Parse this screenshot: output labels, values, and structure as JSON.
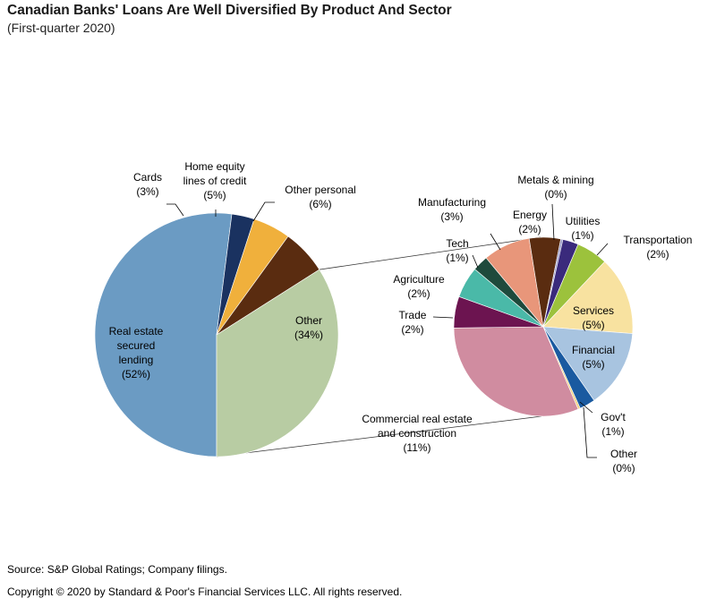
{
  "title": "Canadian Banks' Loans Are Well Diversified By Product And Sector",
  "subtitle": "(First-quarter 2020)",
  "source": "Source: S&P Global Ratings; Company filings.",
  "copyright": "Copyright © 2020 by Standard & Poor's Financial Services LLC. All rights reserved.",
  "chart_data": [
    {
      "type": "pie",
      "slices": [
        {
          "label": "Real estate secured lending",
          "value": 52,
          "value_label": "(52%)",
          "label_lines": [
            "Real estate",
            "secured",
            "lending"
          ],
          "color": "#6b9bc3"
        },
        {
          "label": "Cards",
          "value": 3,
          "value_label": "(3%)",
          "label_lines": [
            "Cards"
          ],
          "color": "#1a3260"
        },
        {
          "label": "Home equity lines of credit",
          "value": 5,
          "value_label": "(5%)",
          "label_lines": [
            "Home equity",
            "lines of credit"
          ],
          "color": "#f0b03c"
        },
        {
          "label": "Other personal",
          "value": 6,
          "value_label": "(6%)",
          "label_lines": [
            "Other personal"
          ],
          "color": "#5a2c10"
        },
        {
          "label": "Other",
          "value": 34,
          "value_label": "(34%)",
          "label_lines": [
            "Other"
          ],
          "color": "#b8cca3"
        }
      ]
    },
    {
      "type": "pie",
      "slices": [
        {
          "label": "Commercial real estate and construction",
          "value": 11,
          "value_label": "(11%)",
          "label_lines": [
            "Commercial real estate",
            "and construction"
          ],
          "color": "#d08ca0"
        },
        {
          "label": "Trade",
          "value": 2,
          "value_label": "(2%)",
          "label_lines": [
            "Trade"
          ],
          "color": "#6c1450"
        },
        {
          "label": "Agriculture",
          "value": 2,
          "value_label": "(2%)",
          "label_lines": [
            "Agriculture"
          ],
          "color": "#4ab9a8"
        },
        {
          "label": "Tech",
          "value": 1,
          "value_label": "(1%)",
          "label_lines": [
            "Tech"
          ],
          "color": "#1e4a3c"
        },
        {
          "label": "Manufacturing",
          "value": 3,
          "value_label": "(3%)",
          "label_lines": [
            "Manufacturing"
          ],
          "color": "#e8967a"
        },
        {
          "label": "Energy",
          "value": 2,
          "value_label": "(2%)",
          "label_lines": [
            "Energy"
          ],
          "color": "#5a2c10"
        },
        {
          "label": "Metals & mining",
          "value": 0,
          "value_label": "(0%)",
          "label_lines": [
            "Metals & mining"
          ],
          "color": "#9a9ac8"
        },
        {
          "label": "Utilities",
          "value": 1,
          "value_label": "(1%)",
          "label_lines": [
            "Utilities"
          ],
          "color": "#3a2a7c"
        },
        {
          "label": "Transportation",
          "value": 2,
          "value_label": "(2%)",
          "label_lines": [
            "Transportation"
          ],
          "color": "#9cc23c"
        },
        {
          "label": "Services",
          "value": 5,
          "value_label": "(5%)",
          "label_lines": [
            "Services"
          ],
          "color": "#f8e2a0"
        },
        {
          "label": "Financial",
          "value": 5,
          "value_label": "(5%)",
          "label_lines": [
            "Financial"
          ],
          "color": "#a8c4e0"
        },
        {
          "label": "Gov't",
          "value": 1,
          "value_label": "(1%)",
          "label_lines": [
            "Gov't"
          ],
          "color": "#1a5aa0"
        },
        {
          "label": "Other",
          "value": 0,
          "value_label": "(0%)",
          "label_lines": [
            "Other"
          ],
          "color": "#f0d080"
        }
      ]
    }
  ]
}
